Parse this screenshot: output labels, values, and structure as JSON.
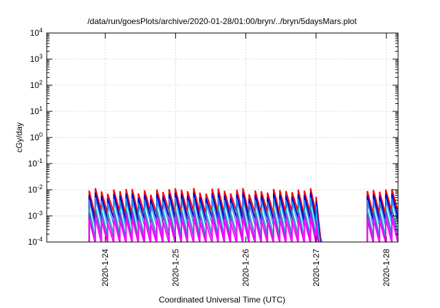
{
  "chart_data": {
    "type": "line",
    "title": "/data/run/goesPlots/archive/2020-01-28/01:00/bryn/../bryn/5daysMars.plot",
    "xlabel": "Coordinated Universal Time (UTC)",
    "ylabel": "cGy/day",
    "x_range": [
      "2020-01-23 04:00",
      "2020-01-28 04:00"
    ],
    "y_scale": "log",
    "ylim": [
      0.0001,
      10000
    ],
    "y_ticks": [
      {
        "base": "10",
        "exp": "-4"
      },
      {
        "base": "10",
        "exp": "-3"
      },
      {
        "base": "10",
        "exp": "-2"
      },
      {
        "base": "10",
        "exp": "-1"
      },
      {
        "base": "10",
        "exp": "0"
      },
      {
        "base": "10",
        "exp": "1"
      },
      {
        "base": "10",
        "exp": "2"
      },
      {
        "base": "10",
        "exp": "3"
      },
      {
        "base": "10",
        "exp": "4"
      }
    ],
    "x_ticks": [
      "2020-1-24",
      "2020-1-25",
      "2020-1-26",
      "2020-1-27",
      "2020-1-28"
    ],
    "grid": true,
    "segments": [
      {
        "start": "2020-01-23 18:30",
        "end": "2020-01-27 00:00",
        "decay_end": "2020-01-27 04:00"
      },
      {
        "start": "2020-01-27 17:30",
        "end": "2020-01-28 04:00"
      }
    ],
    "cycle_hours": 2.1,
    "series": [
      {
        "color": "#ff0000",
        "peak": 0.009,
        "trough": 0.0012,
        "width": 2
      },
      {
        "color": "#0000cc",
        "peak": 0.006,
        "trough": 0.0007,
        "width": 2
      },
      {
        "color": "#1e90ff",
        "peak": 0.004,
        "trough": 0.0004,
        "width": 1.5
      },
      {
        "color": "#00b8b8",
        "peak": 0.0018,
        "trough": 0.00018,
        "width": 1.5
      },
      {
        "color": "#8a2be2",
        "peak": 0.0012,
        "trough": 0.00012,
        "width": 1.5
      },
      {
        "color": "#ff00ff",
        "peak": 0.0007,
        "trough": 6e-05,
        "width": 2
      }
    ]
  }
}
